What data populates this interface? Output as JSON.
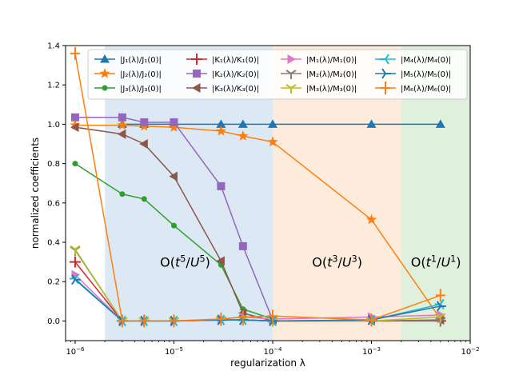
{
  "chart_data": {
    "type": "line",
    "xscale": "log",
    "xlabel": "regularization λ",
    "ylabel": "normalized coefficients",
    "xlim": [
      8e-07,
      0.01
    ],
    "ylim": [
      -0.1,
      1.4
    ],
    "xticks": [
      {
        "value": 1e-06,
        "base": "10",
        "exp": "−6"
      },
      {
        "value": 1e-05,
        "base": "10",
        "exp": "−5"
      },
      {
        "value": 0.0001,
        "base": "10",
        "exp": "−4"
      },
      {
        "value": 0.001,
        "base": "10",
        "exp": "−3"
      },
      {
        "value": 0.01,
        "base": "10",
        "exp": "−2"
      }
    ],
    "yticks": [
      0.0,
      0.2,
      0.4,
      0.6,
      0.8,
      1.0,
      1.2,
      1.4
    ],
    "regions": [
      {
        "from": 2e-06,
        "to": 0.0001,
        "color": "#dce8f3",
        "label": {
          "pre": "O(",
          "t": "t",
          "texp": "5",
          "mid": "/",
          "u": "U",
          "uexp": "5",
          "post": ")"
        },
        "label_x": 1.3e-05,
        "label_y": 0.3
      },
      {
        "from": 0.0001,
        "to": 0.002,
        "color": "#fdebdc",
        "label": {
          "pre": "O(",
          "t": "t",
          "texp": "3",
          "mid": "/",
          "u": "U",
          "uexp": "3",
          "post": ")"
        },
        "label_x": 0.00045,
        "label_y": 0.3
      },
      {
        "from": 0.002,
        "to": 0.01,
        "color": "#dff0dd",
        "label": {
          "pre": "O(",
          "t": "t",
          "texp": "1",
          "mid": "/",
          "u": "U",
          "uexp": "1",
          "post": ")"
        },
        "label_x": 0.0045,
        "label_y": 0.3
      }
    ],
    "x": [
      1e-06,
      3e-06,
      5e-06,
      1e-05,
      3e-05,
      5e-05,
      0.0001,
      0.001,
      0.005
    ],
    "series": [
      {
        "name": "|J₁(λ)/J₁(0)|",
        "color": "#1f77b4",
        "marker": "triangle-up",
        "x": [
          3e-06,
          5e-06,
          1e-05,
          3e-05,
          5e-05,
          0.0001,
          0.001,
          0.005
        ],
        "values": [
          1.0,
          1.0,
          1.0,
          1.0,
          1.0,
          1.0,
          1.0,
          1.0
        ]
      },
      {
        "name": "|J₂(λ)/J₂(0)|",
        "color": "#ff7f0e",
        "marker": "star",
        "x": [
          1e-06,
          3e-06,
          5e-06,
          1e-05,
          3e-05,
          5e-05,
          0.0001,
          0.001,
          0.005
        ],
        "values": [
          0.995,
          0.995,
          0.99,
          0.985,
          0.965,
          0.94,
          0.91,
          0.515,
          0.01
        ]
      },
      {
        "name": "|J₃(λ)/J₃(0)|",
        "color": "#2ca02c",
        "marker": "circle",
        "x": [
          1e-06,
          3e-06,
          5e-06,
          1e-05,
          3e-05,
          5e-05,
          0.0001
        ],
        "values": [
          0.8,
          0.645,
          0.62,
          0.485,
          0.285,
          0.06,
          0.01
        ]
      },
      {
        "name": "|K₁(λ)/K₁(0)|",
        "color": "#d62728",
        "marker": "plus",
        "x": [
          1e-06,
          3e-06,
          5e-06,
          1e-05,
          3e-05,
          5e-05,
          0.0001,
          0.001,
          0.005
        ],
        "values": [
          0.3,
          0.0,
          0.0,
          0.0,
          0.005,
          0.005,
          0.0,
          0.0,
          0.0
        ]
      },
      {
        "name": "|K₂(λ)/K₂(0)|",
        "color": "#9467bd",
        "marker": "square",
        "x": [
          1e-06,
          3e-06,
          5e-06,
          1e-05,
          3e-05,
          5e-05,
          0.0001
        ],
        "values": [
          1.035,
          1.035,
          1.01,
          1.01,
          0.685,
          0.38,
          0.005
        ]
      },
      {
        "name": "|K₃(λ)/K₃(0)|",
        "color": "#8c564b",
        "marker": "triangle-left",
        "x": [
          1e-06,
          3e-06,
          5e-06,
          1e-05,
          3e-05,
          5e-05,
          0.0001,
          0.001,
          0.005
        ],
        "values": [
          0.985,
          0.95,
          0.9,
          0.735,
          0.305,
          0.04,
          0.0,
          0.0,
          0.005
        ]
      },
      {
        "name": "|M₁(λ)/M₁(0)|",
        "color": "#e377c2",
        "marker": "triangle-right",
        "x": [
          1e-06,
          3e-06,
          5e-06,
          1e-05,
          3e-05,
          5e-05,
          0.0001,
          0.001,
          0.005
        ],
        "values": [
          0.235,
          0.0,
          0.0,
          0.0,
          0.01,
          0.02,
          0.01,
          0.02,
          0.03
        ]
      },
      {
        "name": "|M₂(λ)/M₂(0)|",
        "color": "#7f7f7f",
        "marker": "tri-down",
        "x": [
          1e-06,
          3e-06,
          5e-06,
          1e-05,
          3e-05,
          5e-05,
          0.0001,
          0.001,
          0.005
        ],
        "values": [
          0.36,
          0.0,
          0.0,
          0.0,
          0.005,
          0.005,
          0.0,
          0.0,
          0.0
        ]
      },
      {
        "name": "|M₃(λ)/M₃(0)|",
        "color": "#bcbd22",
        "marker": "tri-down",
        "x": [
          1e-06,
          3e-06,
          5e-06,
          1e-05,
          3e-05,
          5e-05,
          0.0001,
          0.001,
          0.005
        ],
        "values": [
          0.365,
          0.0,
          0.0,
          0.0,
          0.005,
          0.005,
          0.0,
          0.0,
          0.02
        ]
      },
      {
        "name": "|M₄(λ)/M₄(0)|",
        "color": "#17becf",
        "marker": "tri-left",
        "x": [
          1e-06,
          3e-06,
          5e-06,
          1e-05,
          3e-05,
          5e-05,
          0.0001,
          0.001,
          0.005
        ],
        "values": [
          0.215,
          0.0,
          0.0,
          0.0,
          0.005,
          0.005,
          0.0,
          0.005,
          0.085
        ]
      },
      {
        "name": "|M₅(λ)/M₅(0)|",
        "color": "#1f77b4",
        "marker": "tri-right",
        "x": [
          1e-06,
          3e-06,
          5e-06,
          1e-05,
          3e-05,
          5e-05,
          0.0001,
          0.001,
          0.005
        ],
        "values": [
          0.21,
          0.0,
          0.0,
          0.0,
          0.005,
          0.005,
          0.0,
          0.005,
          0.075
        ]
      },
      {
        "name": "|M₆(λ)/M₆(0)|",
        "color": "#ff7f0e",
        "marker": "vline",
        "x": [
          1e-06,
          3e-06,
          5e-06,
          1e-05,
          3e-05,
          5e-05,
          0.0001,
          0.001,
          0.005
        ],
        "values": [
          1.36,
          0.0,
          0.0,
          0.0,
          0.01,
          0.02,
          0.025,
          0.005,
          0.13
        ]
      }
    ]
  }
}
